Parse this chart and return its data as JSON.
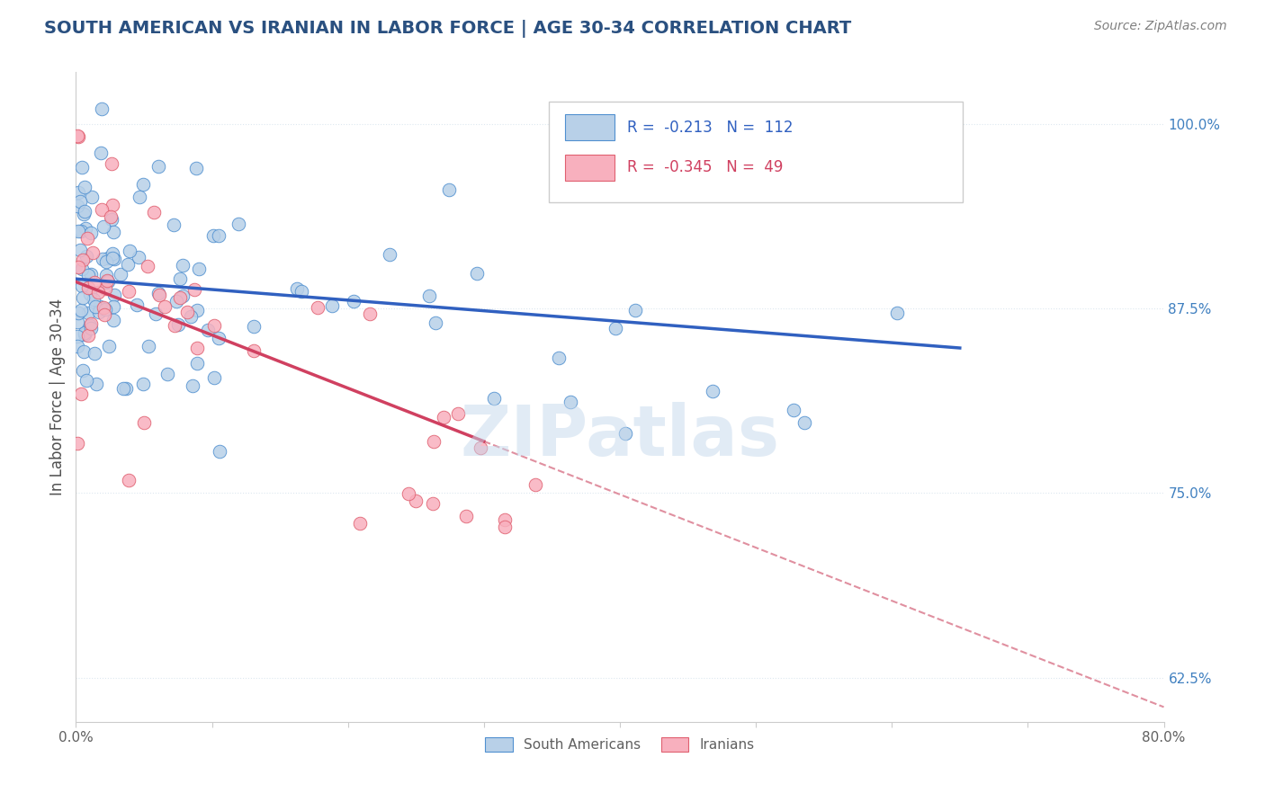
{
  "title": "SOUTH AMERICAN VS IRANIAN IN LABOR FORCE | AGE 30-34 CORRELATION CHART",
  "source_text": "Source: ZipAtlas.com",
  "ylabel": "In Labor Force | Age 30-34",
  "xlim": [
    0.0,
    0.8
  ],
  "ylim": [
    0.595,
    1.035
  ],
  "xtick_positions": [
    0.0,
    0.1,
    0.2,
    0.3,
    0.4,
    0.5,
    0.6,
    0.7,
    0.8
  ],
  "xtick_labels_show": [
    "0.0%",
    "",
    "",
    "",
    "",
    "",
    "",
    "",
    "80.0%"
  ],
  "yticks": [
    0.625,
    0.75,
    0.875,
    1.0
  ],
  "yticklabels": [
    "62.5%",
    "75.0%",
    "87.5%",
    "100.0%"
  ],
  "blue_fill": "#b8d0e8",
  "blue_edge": "#5090d0",
  "pink_fill": "#f8b0be",
  "pink_edge": "#e06070",
  "trend_blue_color": "#3060c0",
  "trend_pink_color": "#d04060",
  "trend_dashed_color": "#e090a0",
  "legend_R_blue": "-0.213",
  "legend_N_blue": "112",
  "legend_R_pink": "-0.345",
  "legend_N_pink": "49",
  "watermark": "ZIPatlas",
  "blue_n": 112,
  "pink_n": 49,
  "blue_seed": 42,
  "pink_seed": 17,
  "title_color": "#2a5080",
  "source_color": "#808080",
  "axis_label_color": "#505050",
  "tick_label_color": "#606060",
  "right_tick_color": "#4080c0",
  "grid_color": "#dde8f0",
  "blue_intercept": 0.895,
  "blue_slope": -0.072,
  "pink_intercept": 0.893,
  "pink_slope": -0.36,
  "dashed_intercept": 0.893,
  "dashed_slope": -0.36
}
